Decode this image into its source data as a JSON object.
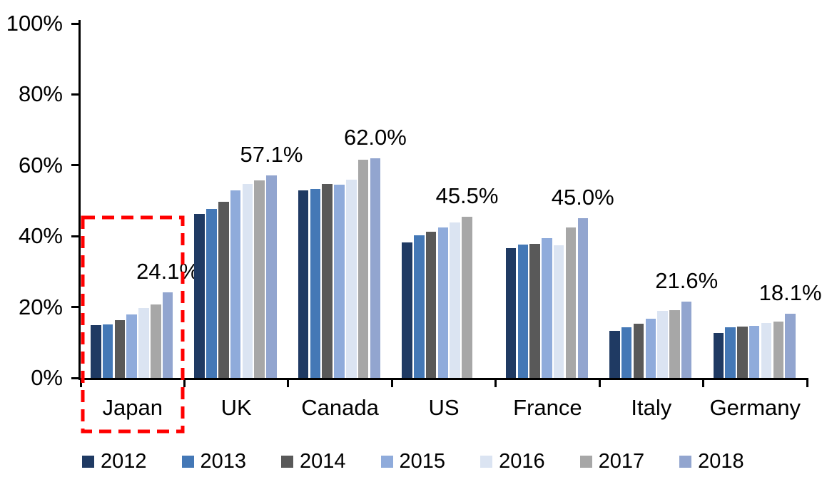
{
  "chart_data": {
    "type": "bar",
    "title": "",
    "xlabel": "",
    "ylabel": "",
    "categories": [
      "Japan",
      "UK",
      "Canada",
      "US",
      "France",
      "Italy",
      "Germany"
    ],
    "series": [
      {
        "name": "2012",
        "color": "#1F3A63",
        "values": [
          14.8,
          46.3,
          53.0,
          38.3,
          36.6,
          13.3,
          12.6
        ]
      },
      {
        "name": "2013",
        "color": "#4478B6",
        "values": [
          15.0,
          47.7,
          53.3,
          40.2,
          37.7,
          14.3,
          14.2
        ]
      },
      {
        "name": "2014",
        "color": "#595959",
        "values": [
          16.4,
          49.7,
          54.8,
          41.2,
          37.8,
          15.3,
          14.4
        ]
      },
      {
        "name": "2015",
        "color": "#8FABDB",
        "values": [
          18.0,
          52.9,
          54.5,
          42.4,
          39.4,
          16.7,
          14.7
        ]
      },
      {
        "name": "2016",
        "color": "#DBE4F2",
        "values": [
          19.7,
          54.7,
          56.0,
          43.8,
          37.5,
          18.9,
          15.4
        ]
      },
      {
        "name": "2017",
        "color": "#A7A7A7",
        "values": [
          20.8,
          55.7,
          61.6,
          45.5,
          42.4,
          19.1,
          15.9
        ]
      },
      {
        "name": "2018",
        "color": "#92A5CF",
        "values": [
          24.1,
          57.1,
          62.0,
          null,
          45.0,
          21.6,
          18.1
        ]
      }
    ],
    "data_labels": [
      "24.1%",
      "57.1%",
      "62.0%",
      "45.5%",
      "45.0%",
      "21.6%",
      "18.1%"
    ],
    "y_ticks": [
      "0%",
      "20%",
      "40%",
      "60%",
      "80%",
      "100%"
    ],
    "ylim": [
      0,
      100
    ],
    "grid": false,
    "legend_position": "bottom",
    "highlight": {
      "category": "Japan",
      "style": "red-dashed-rectangle",
      "color": "#FF0000"
    }
  }
}
